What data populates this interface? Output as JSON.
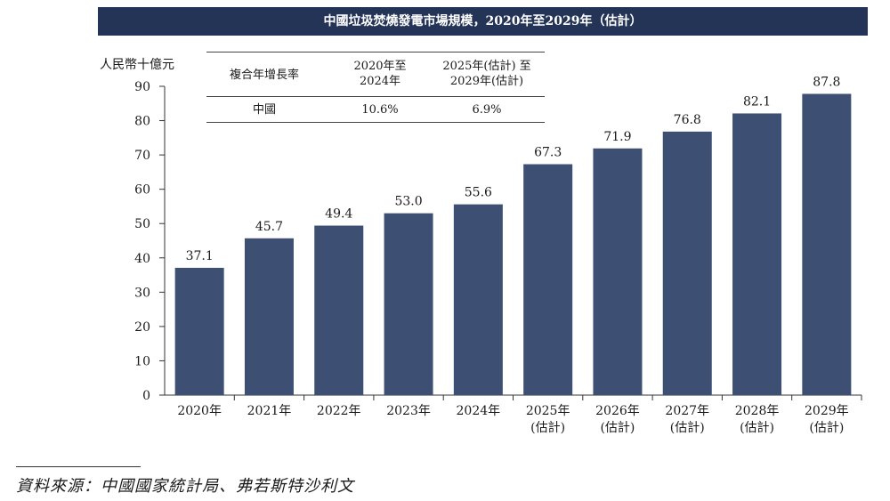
{
  "title": "中國垃圾焚燒發電市場規模，2020年至2029年（估計）",
  "cagr_table": {
    "header": [
      "複合年增長率",
      "2020年至\n2024年",
      "2025年(估計) 至\n2029年(估計)"
    ],
    "rows": [
      [
        "中國",
        "10.6%",
        "6.9%"
      ]
    ]
  },
  "source": "資料來源：中國國家統計局、弗若斯特沙利文",
  "chart_data": {
    "type": "bar",
    "categories": [
      "2020年",
      "2021年",
      "2022年",
      "2023年",
      "2024年",
      "2025年\n(估計)",
      "2026年\n(估計)",
      "2027年\n(估計)",
      "2028年\n(估計)",
      "2029年\n(估計)"
    ],
    "values": [
      37.1,
      45.7,
      49.4,
      53.0,
      55.6,
      67.3,
      71.9,
      76.8,
      82.1,
      87.8
    ],
    "value_labels": [
      "37.1",
      "45.7",
      "49.4",
      "53.0",
      "55.6",
      "67.3",
      "71.9",
      "76.8",
      "82.1",
      "87.8"
    ],
    "title": "中國垃圾焚燒發電市場規模，2020年至2029年（估計）",
    "ylabel": "人民幣十億元",
    "xlabel": "",
    "ylim": [
      0,
      90
    ],
    "yticks": [
      0,
      10,
      20,
      30,
      40,
      50,
      60,
      70,
      80,
      90
    ],
    "grid": false,
    "bar_color": "#3d4f72"
  }
}
